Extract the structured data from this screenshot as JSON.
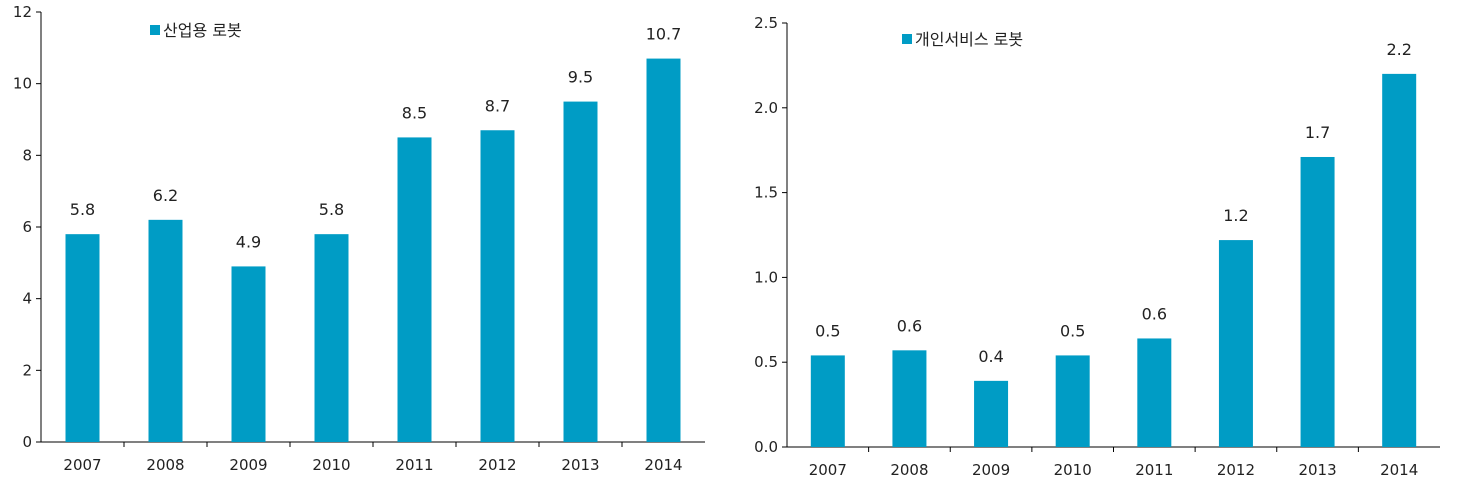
{
  "chart_data": [
    {
      "type": "bar",
      "categories": [
        "2007",
        "2008",
        "2009",
        "2010",
        "2011",
        "2012",
        "2013",
        "2014"
      ],
      "series": [
        {
          "name": "산업용 로봇",
          "values": [
            5.8,
            6.2,
            4.9,
            5.8,
            8.5,
            8.7,
            9.5,
            10.7
          ]
        }
      ],
      "data_labels": [
        "5.8",
        "6.2",
        "4.9",
        "5.8",
        "8.5",
        "8.7",
        "9.5",
        "10.7"
      ],
      "ylim": [
        0,
        12
      ],
      "yticks": [
        0,
        2,
        4,
        6,
        8,
        10,
        12
      ],
      "ytick_labels": [
        "0",
        "2",
        "4",
        "6",
        "8",
        "10",
        "12"
      ],
      "grid": false,
      "legend": "top-left",
      "bar_color": "#009cc5"
    },
    {
      "type": "bar",
      "categories": [
        "2007",
        "2008",
        "2009",
        "2010",
        "2011",
        "2012",
        "2013",
        "2014"
      ],
      "series": [
        {
          "name": "개인서비스 로봇",
          "values": [
            0.54,
            0.57,
            0.39,
            0.54,
            0.64,
            1.22,
            1.71,
            2.2
          ]
        }
      ],
      "data_labels": [
        "0.5",
        "0.6",
        "0.4",
        "0.5",
        "0.6",
        "1.2",
        "1.7",
        "2.2"
      ],
      "ylim": [
        0,
        2.5
      ],
      "yticks": [
        0,
        0.5,
        1.0,
        1.5,
        2.0,
        2.5
      ],
      "ytick_labels": [
        "0.0",
        "0.5",
        "1.0",
        "1.5",
        "2.0",
        "2.5"
      ],
      "grid": false,
      "legend": "top-left",
      "bar_color": "#009cc5"
    }
  ]
}
